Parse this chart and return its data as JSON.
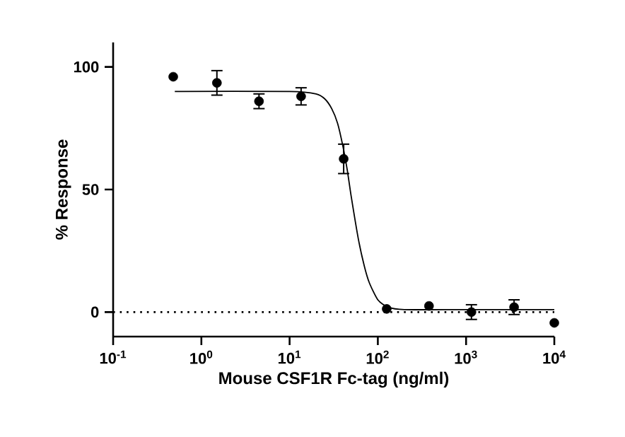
{
  "chart_data": {
    "type": "scatter",
    "xlabel": "Mouse CSF1R Fc-tag (ng/ml)",
    "ylabel": "% Response",
    "log": "x",
    "xlim": [
      0.1,
      10000
    ],
    "ylim": [
      -10,
      110
    ],
    "xticks": [
      {
        "value": 0.1,
        "label": "10$^{-1}$"
      },
      {
        "value": 1,
        "label": "10$^{0}$"
      },
      {
        "value": 10,
        "label": "10$^{1}$"
      },
      {
        "value": 100,
        "label": "10$^{2}$"
      },
      {
        "value": 1000,
        "label": "10$^{3}$"
      },
      {
        "value": 10000,
        "label": "10$^{4}$"
      }
    ],
    "yticks": [
      0,
      50,
      100
    ],
    "grid": false,
    "ref_lines": [
      {
        "axis": "y",
        "value": 0,
        "line_style": "dotted",
        "color": "#000000"
      }
    ],
    "series": [
      {
        "marker": "circle",
        "color": "#000000",
        "x": [
          0.48,
          1.5,
          4.5,
          13.5,
          41,
          126,
          380,
          1150,
          3500,
          10000
        ],
        "values": [
          96,
          93.5,
          86,
          88,
          62.5,
          1.3,
          2.5,
          0,
          2,
          -4.4
        ],
        "errors": [
          null,
          5,
          3,
          3.5,
          6,
          null,
          null,
          3,
          3,
          null
        ]
      },
      {
        "type": "line",
        "marker": "none",
        "color": "#000000",
        "x": [
          0.5,
          10,
          20,
          25,
          30,
          35,
          40,
          45,
          50,
          60,
          70,
          80,
          100,
          130,
          200,
          1000,
          10000
        ],
        "values": [
          90,
          90,
          89,
          87,
          83,
          77,
          68,
          58,
          47,
          30,
          19,
          12,
          5,
          2,
          1,
          1,
          1
        ]
      }
    ]
  }
}
